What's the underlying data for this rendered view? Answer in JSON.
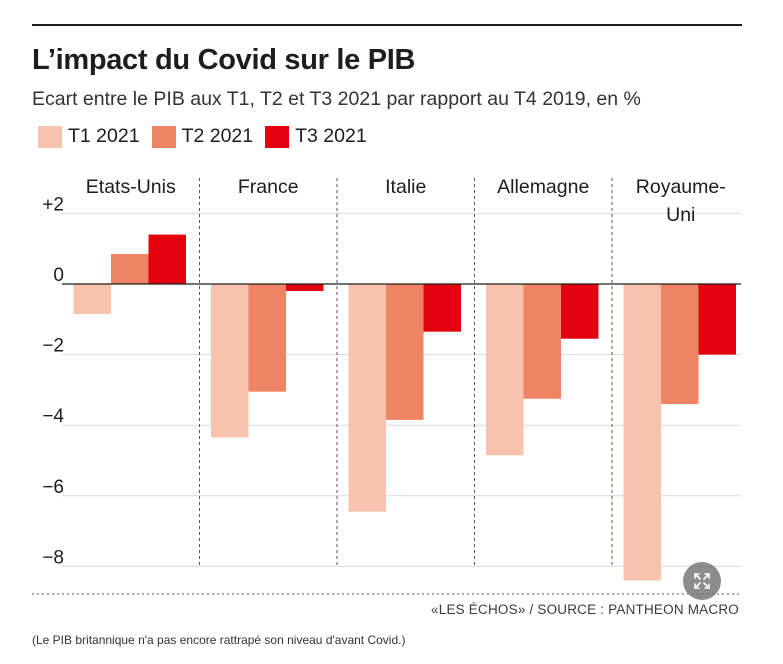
{
  "chart_data": {
    "type": "bar",
    "title": "L’impact du Covid sur le PIB",
    "subtitle": "Ecart entre le PIB aux T1, T2 et T3 2021 par rapport au T4 2019, en %",
    "groups": [
      {
        "name": "Etats-Unis",
        "label_lines": [
          "Etats-Unis"
        ]
      },
      {
        "name": "France",
        "label_lines": [
          "France"
        ]
      },
      {
        "name": "Italie",
        "label_lines": [
          "Italie"
        ]
      },
      {
        "name": "Allemagne",
        "label_lines": [
          "Allemagne"
        ]
      },
      {
        "name": "Royaume-Uni",
        "label_lines": [
          "Royaume-",
          "Uni"
        ]
      }
    ],
    "categories": [
      "Etats-Unis",
      "France",
      "Italie",
      "Allemagne",
      "Royaume-Uni"
    ],
    "series": [
      {
        "name": "T1 2021",
        "color": "#f8c3ae",
        "values": [
          -0.85,
          -4.35,
          -6.45,
          -4.85,
          -8.4
        ]
      },
      {
        "name": "T2 2021",
        "color": "#ee8463",
        "values": [
          0.85,
          -3.05,
          -3.85,
          -3.25,
          -3.4
        ]
      },
      {
        "name": "T3 2021",
        "color": "#e3000f",
        "values": [
          1.4,
          -0.2,
          -1.35,
          -1.55,
          -2.0
        ]
      }
    ],
    "yticks": [
      2,
      0,
      -2,
      -4,
      -6,
      -8
    ],
    "ytick_labels": [
      "+2",
      "0",
      "−2",
      "−4",
      "−6",
      "−8"
    ],
    "ylim": [
      -8.6,
      2.6
    ],
    "grid": true,
    "legend_position": "top-left",
    "source": "«LES ÉCHOS» / SOURCE : PANTHEON MACRO"
  },
  "caption": "(Le PIB britannique n'a pas encore rattrapé son niveau d'avant Covid.)",
  "expand_icon": "expand-icon"
}
